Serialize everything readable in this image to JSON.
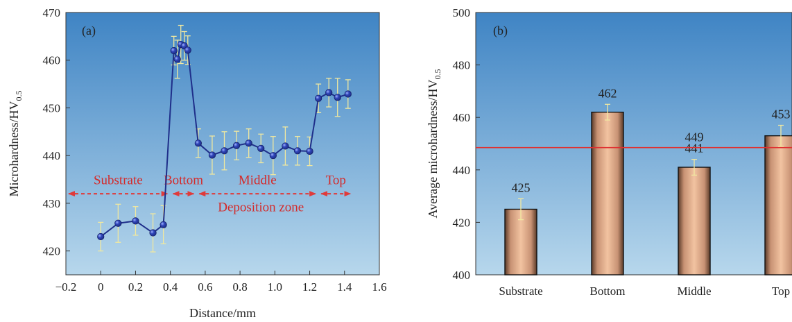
{
  "colors": {
    "bg_top": "#3f84c4",
    "bg_bottom": "#b7d7ec",
    "line_point": "#1f2f8a",
    "error_bar": "#f0e8a0",
    "zone_arrow": "#e03a3a",
    "bar_light": "#f2c3a1",
    "bar_dark": "#5a3a28",
    "avg_line": "#e03030"
  },
  "chart_data": [
    {
      "type": "line",
      "panel": "(a)",
      "xlabel": "Distance/mm",
      "ylabel": "Microhardness/HV",
      "ylabel_sub": "0.5",
      "xlim": [
        -0.2,
        1.6
      ],
      "ylim": [
        415,
        470
      ],
      "xticks": [
        -0.2,
        0,
        0.2,
        0.4,
        0.6,
        0.8,
        1.0,
        1.2,
        1.4,
        1.6
      ],
      "xtick_labels": [
        "−0.2",
        "0",
        "0.2",
        "0.4",
        "0.6",
        "0.8",
        "1.0",
        "1.2",
        "1.4",
        "1.6"
      ],
      "yticks": [
        420,
        430,
        440,
        450,
        460,
        470
      ],
      "ytick_labels": [
        "420",
        "430",
        "440",
        "450",
        "460",
        "470"
      ],
      "series": [
        {
          "x": [
            0,
            0.1,
            0.2,
            0.3,
            0.36,
            0.42,
            0.44,
            0.46,
            0.48,
            0.5,
            0.56,
            0.64,
            0.71,
            0.78,
            0.85,
            0.92,
            0.99,
            1.06,
            1.13,
            1.2,
            1.25,
            1.31,
            1.36,
            1.42
          ],
          "y": [
            423,
            425.8,
            426.3,
            423.8,
            425.5,
            462,
            460.2,
            463.3,
            463,
            462.1,
            442.6,
            440.1,
            441,
            442.1,
            442.6,
            441.5,
            440,
            442,
            441,
            440.9,
            452,
            453.2,
            452.2,
            452.9
          ],
          "err": [
            3,
            4,
            3,
            4,
            4,
            3,
            4,
            4,
            3,
            3,
            3,
            4,
            4,
            3,
            3,
            3,
            4,
            4,
            3,
            3,
            3,
            3,
            4,
            3
          ]
        }
      ],
      "zones": [
        {
          "label": "Substrate",
          "x_from": -0.2,
          "x_to": 0.4
        },
        {
          "label": "Bottom",
          "x_from": 0.4,
          "x_to": 0.55
        },
        {
          "label": "Middle",
          "x_from": 0.55,
          "x_to": 1.25
        },
        {
          "label": "Top",
          "x_from": 1.25,
          "x_to": 1.45
        }
      ],
      "zone_arrow_y": 432,
      "zone_label_y": 434,
      "deposition_label": "Deposition zone",
      "deposition_label_x": 0.92,
      "deposition_label_y": 428.3
    },
    {
      "type": "bar",
      "panel": "(b)",
      "xlabel": "",
      "ylabel": "Average microhardness/HV",
      "ylabel_sub": "0.5",
      "categories": [
        "Substrate",
        "Bottom",
        "Middle",
        "Top"
      ],
      "values": [
        425,
        462,
        441,
        453
      ],
      "value_labels": [
        "425",
        "462",
        "441",
        "453"
      ],
      "err": [
        4,
        3,
        3,
        4
      ],
      "ylim": [
        400,
        500
      ],
      "yticks": [
        400,
        420,
        440,
        460,
        480,
        500
      ],
      "ytick_labels": [
        "400",
        "420",
        "440",
        "460",
        "480",
        "500"
      ],
      "avg_line": 448.5,
      "avg_label": "449"
    }
  ]
}
